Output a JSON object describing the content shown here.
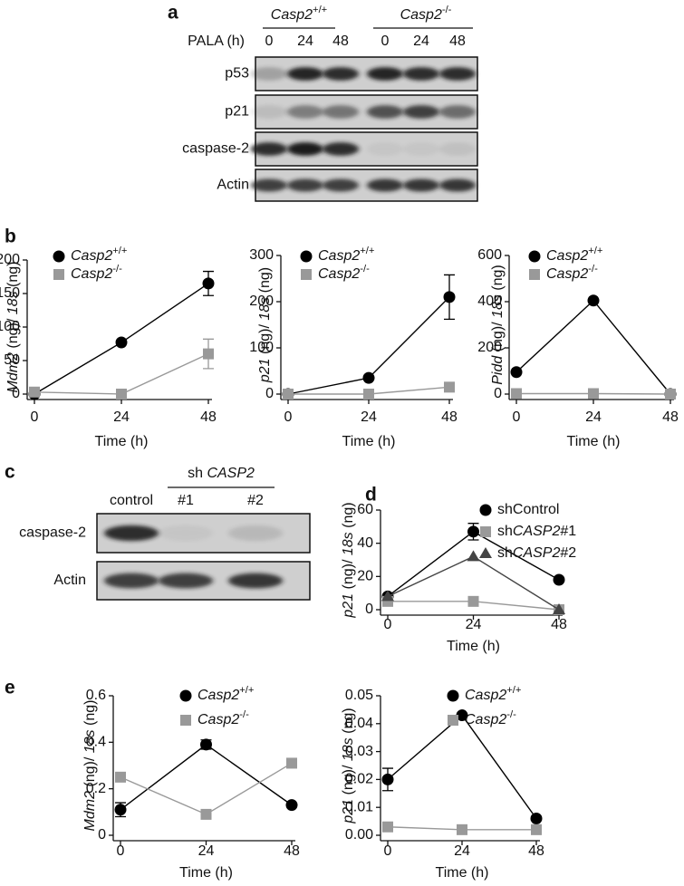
{
  "panel_letters": [
    "a",
    "b",
    "c",
    "d",
    "e"
  ],
  "blot_a": {
    "groups": [
      "Casp2+/+",
      "Casp2-/-"
    ],
    "treatment": "PALA (h)",
    "lanes": [
      "0",
      "24",
      "48",
      "0",
      "24",
      "48"
    ],
    "rows": [
      "p53",
      "p21",
      "caspase-2",
      "Actin"
    ]
  },
  "blot_c": {
    "group": "sh CASP2",
    "lanes": [
      "control",
      "#1",
      "#2"
    ],
    "rows": [
      "caspase-2",
      "Actin"
    ]
  },
  "chart_data": [
    {
      "type": "line",
      "ylabel": "Mdm2 (ng)/ 18s (ng)",
      "xlabel": "Time (h)",
      "x": [
        0,
        24,
        48
      ],
      "xlim": [
        0,
        48
      ],
      "xticks": [
        0,
        24,
        48
      ],
      "ylim": [
        0,
        200
      ],
      "yticks": [
        0,
        50,
        100,
        150,
        200
      ],
      "series": [
        {
          "name": "Casp2+/+",
          "color": "#000000",
          "marker": "circle",
          "values": [
            0,
            77,
            165
          ],
          "errors": [
            null,
            null,
            18
          ]
        },
        {
          "name": "Casp2-/-",
          "color": "#999999",
          "marker": "square",
          "values": [
            3,
            0,
            60
          ],
          "errors": [
            null,
            null,
            22
          ]
        }
      ]
    },
    {
      "type": "line",
      "ylabel": "p21 (ng)/ 18s (ng)",
      "xlabel": "Time (h)",
      "x": [
        0,
        24,
        48
      ],
      "xlim": [
        0,
        48
      ],
      "xticks": [
        0,
        24,
        48
      ],
      "ylim": [
        0,
        300
      ],
      "yticks": [
        0,
        100,
        200,
        300
      ],
      "series": [
        {
          "name": "Casp2+/+",
          "color": "#000000",
          "marker": "circle",
          "values": [
            0,
            35,
            210
          ],
          "errors": [
            null,
            null,
            48
          ]
        },
        {
          "name": "Casp2-/-",
          "color": "#999999",
          "marker": "square",
          "values": [
            0,
            0,
            15
          ],
          "errors": [
            null,
            null,
            null
          ]
        }
      ]
    },
    {
      "type": "line",
      "ylabel": "Pidd (ng)/ 18s (ng)",
      "xlabel": "Time (h)",
      "x": [
        0,
        24,
        48
      ],
      "xlim": [
        0,
        48
      ],
      "xticks": [
        0,
        24,
        48
      ],
      "ylim": [
        0,
        600
      ],
      "yticks": [
        0,
        200,
        400,
        600
      ],
      "series": [
        {
          "name": "Casp2+/+",
          "color": "#000000",
          "marker": "circle",
          "values": [
            95,
            405,
            0
          ],
          "errors": [
            null,
            null,
            null
          ]
        },
        {
          "name": "Casp2-/-",
          "color": "#999999",
          "marker": "square",
          "values": [
            2,
            2,
            0
          ],
          "errors": [
            null,
            null,
            null
          ]
        }
      ]
    },
    {
      "type": "line",
      "ylabel": "p21 (ng)/ 18s (ng)",
      "xlabel": "Time (h)",
      "x": [
        0,
        24,
        48
      ],
      "xlim": [
        0,
        48
      ],
      "xticks": [
        0,
        24,
        48
      ],
      "ylim": [
        0,
        60
      ],
      "yticks": [
        0,
        20,
        40,
        60
      ],
      "series": [
        {
          "name": "shControl",
          "color": "#000000",
          "marker": "circle",
          "values": [
            8,
            47,
            18
          ],
          "errors": [
            null,
            5,
            null
          ]
        },
        {
          "name": "shCASP2#1",
          "color": "#999999",
          "marker": "square",
          "values": [
            5,
            5,
            0
          ],
          "errors": [
            null,
            null,
            null
          ]
        },
        {
          "name": "shCASP2#2",
          "color": "#444444",
          "marker": "triangle",
          "values": [
            8,
            32,
            0
          ],
          "errors": [
            null,
            null,
            null
          ]
        }
      ]
    },
    {
      "type": "line",
      "ylabel": "Mdm2 (ng)/ 18s (ng)",
      "xlabel": "Time (h)",
      "x": [
        0,
        24,
        48
      ],
      "xlim": [
        0,
        48
      ],
      "xticks": [
        0,
        24,
        48
      ],
      "ylim": [
        0,
        0.6
      ],
      "yticks": [
        0,
        0.2,
        0.4,
        0.6
      ],
      "series": [
        {
          "name": "Casp2+/+",
          "color": "#000000",
          "marker": "circle",
          "values": [
            0.11,
            0.39,
            0.13
          ],
          "errors": [
            0.03,
            0.02,
            null
          ]
        },
        {
          "name": "Casp2-/-",
          "color": "#999999",
          "marker": "square",
          "values": [
            0.25,
            0.09,
            0.31
          ],
          "errors": [
            null,
            null,
            null
          ]
        }
      ]
    },
    {
      "type": "line",
      "ylabel": "p21 (ng)/ 18s (ng)",
      "xlabel": "Time (h)",
      "x": [
        0,
        24,
        48
      ],
      "xlim": [
        0,
        48
      ],
      "xticks": [
        0,
        24,
        48
      ],
      "ylim": [
        0,
        0.05
      ],
      "yticks": [
        {
          "value": 0,
          "label": "0.00"
        },
        0.01,
        0.02,
        0.03,
        0.04,
        0.05
      ],
      "series": [
        {
          "name": "Casp2+/+",
          "color": "#000000",
          "marker": "circle",
          "values": [
            0.02,
            0.043,
            0.006
          ],
          "errors": [
            0.004,
            null,
            null
          ]
        },
        {
          "name": "Casp2-/-",
          "color": "#999999",
          "marker": "square",
          "values": [
            0.003,
            0.002,
            0.002
          ],
          "errors": [
            null,
            null,
            null
          ]
        }
      ]
    }
  ]
}
